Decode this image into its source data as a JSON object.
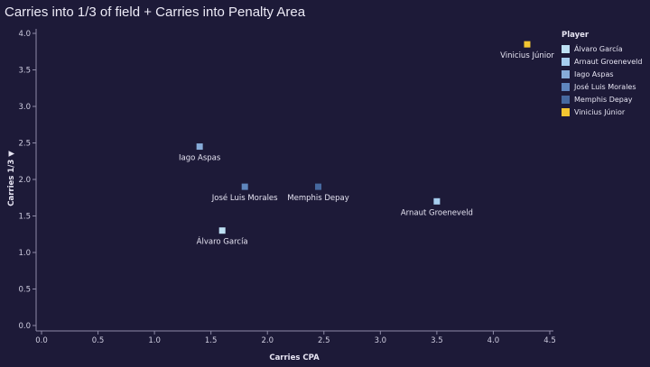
{
  "chart_data": {
    "type": "scatter",
    "title": "Carries into 1/3 of field + Carries into Penalty Area",
    "xlabel": "Carries CPA",
    "ylabel": "Carries 1/3 ▼",
    "xlim": [
      0,
      4.5
    ],
    "ylim": [
      0,
      4
    ],
    "xticks": [
      "0.0",
      "0.5",
      "1.0",
      "1.5",
      "2.0",
      "2.5",
      "3.0",
      "3.5",
      "4.0",
      "4.5"
    ],
    "yticks": [
      "0.0",
      "0.5",
      "1.0",
      "1.5",
      "2.0",
      "2.5",
      "3.0",
      "3.5",
      "4.0"
    ],
    "legend_title": "Player",
    "legend_position": "top-right",
    "points": [
      {
        "name": "Álvaro García",
        "x": 1.6,
        "y": 1.3,
        "color": "#bde0f3",
        "label_pos": "below"
      },
      {
        "name": "Arnaut Groeneveld",
        "x": 3.5,
        "y": 1.7,
        "color": "#a6cdee",
        "label_pos": "below"
      },
      {
        "name": "Iago Aspas",
        "x": 1.4,
        "y": 2.45,
        "color": "#86abd8",
        "label_pos": "below"
      },
      {
        "name": "José Luis Morales",
        "x": 1.8,
        "y": 1.9,
        "color": "#5f86bd",
        "label_pos": "below"
      },
      {
        "name": "Memphis Depay",
        "x": 2.45,
        "y": 1.9,
        "color": "#46699f",
        "label_pos": "below"
      },
      {
        "name": "Vinicius Júnior",
        "x": 4.3,
        "y": 3.85,
        "color": "#f2c531",
        "label_pos": "below"
      }
    ]
  }
}
